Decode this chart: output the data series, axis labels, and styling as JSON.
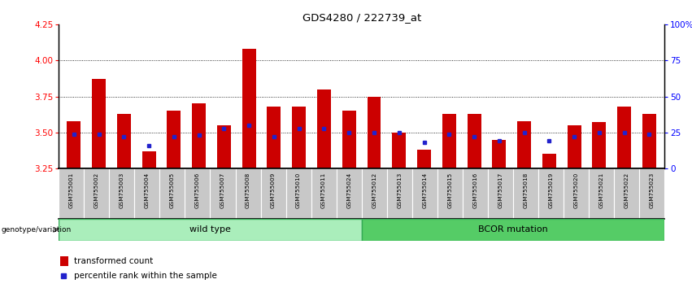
{
  "title": "GDS4280 / 222739_at",
  "samples": [
    "GSM755001",
    "GSM755002",
    "GSM755003",
    "GSM755004",
    "GSM755005",
    "GSM755006",
    "GSM755007",
    "GSM755008",
    "GSM755009",
    "GSM755010",
    "GSM755011",
    "GSM755024",
    "GSM755012",
    "GSM755013",
    "GSM755014",
    "GSM755015",
    "GSM755016",
    "GSM755017",
    "GSM755018",
    "GSM755019",
    "GSM755020",
    "GSM755021",
    "GSM755022",
    "GSM755023"
  ],
  "transformed_count": [
    3.58,
    3.87,
    3.63,
    3.37,
    3.65,
    3.7,
    3.55,
    4.08,
    3.68,
    3.68,
    3.8,
    3.65,
    3.75,
    3.5,
    3.38,
    3.63,
    3.63,
    3.45,
    3.58,
    3.35,
    3.55,
    3.57,
    3.68,
    3.63
  ],
  "percentile_rank": [
    24,
    24,
    22,
    16,
    22,
    23,
    28,
    30,
    22,
    28,
    28,
    25,
    25,
    25,
    18,
    24,
    22,
    19,
    25,
    19,
    22,
    25,
    25,
    24
  ],
  "ylim_left": [
    3.25,
    4.25
  ],
  "ylim_right": [
    0,
    100
  ],
  "yticks_left": [
    3.25,
    3.5,
    3.75,
    4.0,
    4.25
  ],
  "yticks_right": [
    0,
    25,
    50,
    75,
    100
  ],
  "ytick_labels_right": [
    "0",
    "25",
    "50",
    "75",
    "100%"
  ],
  "grid_values": [
    3.5,
    3.75,
    4.0
  ],
  "wild_type_count": 12,
  "bcor_count": 12,
  "bar_color": "#CC0000",
  "blue_color": "#2222CC",
  "wt_bg_light": "#CCFFCC",
  "wt_bg_dark": "#55CC55",
  "bcor_bg": "#44CC44",
  "sample_bg": "#C8C8C8",
  "bar_width": 0.55,
  "baseline": 3.25
}
